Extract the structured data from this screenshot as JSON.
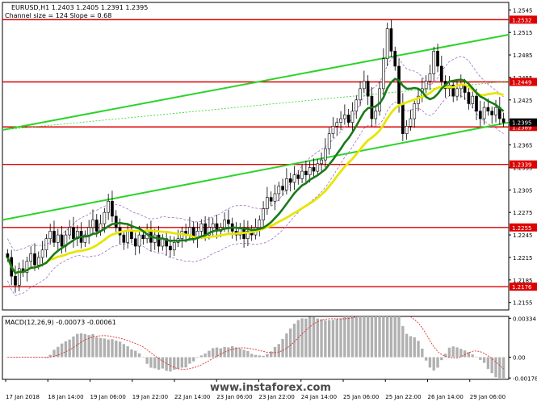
{
  "header": {
    "symbol_line": "EURUSD,H1  1.2403 1.2405 1.2391 1.2395",
    "channel_info": "Channel size = 124 Slope = 0.68"
  },
  "watermark": "www.instaforex.com",
  "chart_data": {
    "type": "candlestick",
    "price_axis": {
      "ylim": [
        1.2145,
        1.2555
      ],
      "ticks": [
        "1.2545",
        "1.2515",
        "1.2485",
        "1.2455",
        "1.2425",
        "1.2395",
        "1.2365",
        "1.2335",
        "1.2305",
        "1.2275",
        "1.2245",
        "1.2215",
        "1.2185",
        "1.2155"
      ],
      "current_price": "1.2395"
    },
    "time_axis": {
      "labels": [
        "17 Jan 2018",
        "18 Jan 14:00",
        "19 Jan 06:00",
        "19 Jan 22:00",
        "22 Jan 14:00",
        "23 Jan 06:00",
        "23 Jan 22:00",
        "24 Jan 14:00",
        "25 Jan 06:00",
        "25 Jan 22:00",
        "26 Jan 14:00",
        "29 Jan 06:00"
      ]
    },
    "levels": [
      {
        "label": "1.2532",
        "value": 1.2532,
        "color": "#dd0000"
      },
      {
        "label": "1.2449",
        "value": 1.2449,
        "color": "#dd0000"
      },
      {
        "label": "1.2389",
        "value": 1.2389,
        "color": "#dd0000"
      },
      {
        "label": "1.2339",
        "value": 1.2339,
        "color": "#dd0000"
      },
      {
        "label": "1.2255",
        "value": 1.2255,
        "color": "#dd0000"
      },
      {
        "label": "1.2176",
        "value": 1.2176,
        "color": "#dd0000"
      }
    ],
    "channel_color": "#2ad42a",
    "ma_fast_color": "#1a7a1a",
    "ma_slow_color": "#e6e600",
    "bollinger_color": "#a070c8",
    "candles_close": [
      1.2215,
      1.219,
      1.2178,
      1.22,
      1.2195,
      1.221,
      1.222,
      1.2205,
      1.2215,
      1.2225,
      1.224,
      1.225,
      1.2235,
      1.2245,
      1.223,
      1.2245,
      1.2255,
      1.224,
      1.225,
      1.2235,
      1.2245,
      1.2255,
      1.2265,
      1.225,
      1.226,
      1.2275,
      1.229,
      1.227,
      1.2255,
      1.2245,
      1.2235,
      1.225,
      1.224,
      1.223,
      1.2245,
      1.224,
      1.225,
      1.2235,
      1.2245,
      1.223,
      1.224,
      1.223,
      1.2225,
      1.2235,
      1.224,
      1.225,
      1.2245,
      1.2255,
      1.224,
      1.225,
      1.226,
      1.2245,
      1.2255,
      1.226,
      1.225,
      1.2255,
      1.2265,
      1.226,
      1.225,
      1.2245,
      1.2255,
      1.224,
      1.225,
      1.2245,
      1.2255,
      1.2265,
      1.228,
      1.2295,
      1.229,
      1.23,
      1.231,
      1.2305,
      1.232,
      1.2315,
      1.2325,
      1.232,
      1.233,
      1.2325,
      1.2335,
      1.233,
      1.234,
      1.2345,
      1.236,
      1.238,
      1.239,
      1.2395,
      1.24,
      1.2405,
      1.2395,
      1.241,
      1.2425,
      1.244,
      1.245,
      1.243,
      1.24,
      1.241,
      1.244,
      1.248,
      1.252,
      1.249,
      1.247,
      1.242,
      1.238,
      1.239,
      1.24,
      1.242,
      1.243,
      1.244,
      1.245,
      1.246,
      1.249,
      1.247,
      1.245,
      1.244,
      1.2445,
      1.243,
      1.244,
      1.2445,
      1.2435,
      1.242,
      1.243,
      1.241,
      1.24,
      1.2415,
      1.241,
      1.2405,
      1.2415,
      1.24,
      1.2395
    ],
    "macd": {
      "label": "MACD(12,26,9) -0.00073 -0.00061",
      "ylim": [
        -0.0019,
        0.0035
      ],
      "ticks": [
        "0.00334",
        "0.00",
        "-0.00178"
      ],
      "bar_color": "#b0b0b0",
      "signal_color": "#e03030"
    }
  }
}
